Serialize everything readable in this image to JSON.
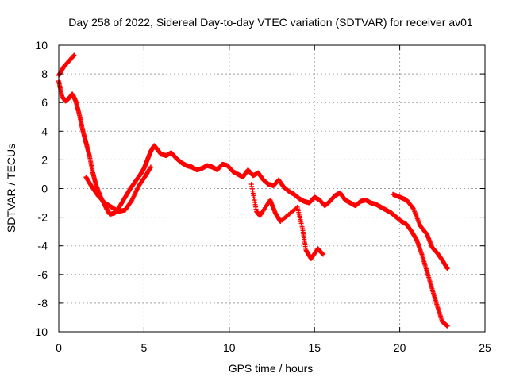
{
  "chart_data": {
    "type": "scatter",
    "title": "Day 258 of 2022, Sidereal Day-to-day VTEC variation (SDTVAR) for receiver av01",
    "xlabel": "GPS time / hours",
    "ylabel": "SDTVAR / TECUs",
    "xlim": [
      0,
      25
    ],
    "ylim": [
      -10,
      10
    ],
    "xticks": [
      0,
      5,
      10,
      15,
      20,
      25
    ],
    "yticks": [
      -10,
      -8,
      -6,
      -4,
      -2,
      0,
      2,
      4,
      6,
      8,
      10
    ],
    "grid": true,
    "marker": "+",
    "color": "#ff0000",
    "legend": "none",
    "series": [
      {
        "name": "upper-trace",
        "x": [
          0.0,
          0.3,
          0.6,
          0.9
        ],
        "y": [
          7.9,
          8.5,
          8.9,
          9.3
        ]
      },
      {
        "name": "main-trace",
        "x": [
          0.0,
          0.2,
          0.4,
          0.6,
          0.8,
          1.0,
          1.2,
          1.4,
          1.6,
          1.8,
          2.0,
          2.2,
          2.5,
          2.8,
          3.0,
          3.3,
          3.6,
          3.9,
          4.2,
          4.5,
          4.8,
          5.0,
          5.2,
          5.4,
          5.6,
          5.8,
          6.0,
          6.3,
          6.6,
          6.9,
          7.2,
          7.5,
          7.8,
          8.1,
          8.4,
          8.7,
          9.0,
          9.3,
          9.6,
          9.9,
          10.2,
          10.5,
          10.8,
          11.1,
          11.4,
          11.7,
          12.0,
          12.3,
          12.6,
          12.9,
          13.2,
          13.5,
          13.8,
          14.1,
          14.4,
          14.7,
          15.0,
          15.3,
          15.6,
          15.9,
          16.2,
          16.5,
          16.8,
          17.1,
          17.4,
          17.7,
          18.0,
          18.3,
          18.6,
          18.9,
          19.2,
          19.5,
          19.8,
          20.1,
          20.4,
          20.7,
          21.0,
          21.3,
          21.6,
          21.9,
          22.2,
          22.5,
          22.8
        ],
        "y": [
          7.5,
          6.4,
          6.1,
          6.3,
          6.6,
          6.1,
          5.2,
          4.1,
          3.2,
          2.3,
          1.1,
          0.2,
          -0.7,
          -1.4,
          -1.8,
          -1.7,
          -1.2,
          -0.6,
          0.0,
          0.5,
          1.0,
          1.4,
          2.0,
          2.6,
          3.0,
          2.7,
          2.4,
          2.3,
          2.5,
          2.1,
          1.8,
          1.6,
          1.5,
          1.3,
          1.4,
          1.6,
          1.5,
          1.3,
          1.7,
          1.6,
          1.2,
          1.0,
          0.8,
          1.3,
          0.9,
          1.1,
          0.6,
          0.3,
          0.2,
          0.6,
          0.1,
          -0.2,
          -0.4,
          -0.7,
          -0.9,
          -1.0,
          -0.6,
          -0.8,
          -1.2,
          -0.9,
          -0.5,
          -0.3,
          -0.8,
          -1.0,
          -1.2,
          -0.9,
          -0.8,
          -1.0,
          -1.1,
          -1.3,
          -1.5,
          -1.7,
          -2.0,
          -2.3,
          -2.5,
          -3.0,
          -3.6,
          -4.6,
          -5.8,
          -7.0,
          -8.2,
          -9.3,
          -9.6
        ]
      },
      {
        "name": "lower-branches",
        "x": [
          1.6,
          1.9,
          2.3,
          2.7,
          3.1,
          3.5,
          3.9,
          4.3,
          4.7,
          5.1,
          5.4,
          11.3,
          11.6,
          11.8,
          12.4,
          12.7,
          13.0,
          14.0,
          14.3,
          14.5,
          14.8,
          15.2,
          15.5,
          19.6,
          20.0,
          20.4,
          20.8,
          21.2,
          21.6,
          21.9,
          22.2,
          22.5,
          22.8
        ],
        "y": [
          0.8,
          0.2,
          -0.5,
          -1.0,
          -1.3,
          -1.6,
          -1.5,
          -0.8,
          0.2,
          0.9,
          1.5,
          0.3,
          -1.6,
          -1.9,
          -0.8,
          -1.7,
          -2.3,
          -1.3,
          -2.8,
          -4.3,
          -4.9,
          -4.2,
          -4.6,
          -0.4,
          -0.6,
          -0.8,
          -1.4,
          -2.6,
          -3.2,
          -4.1,
          -4.5,
          -5.0,
          -5.6
        ]
      }
    ]
  }
}
